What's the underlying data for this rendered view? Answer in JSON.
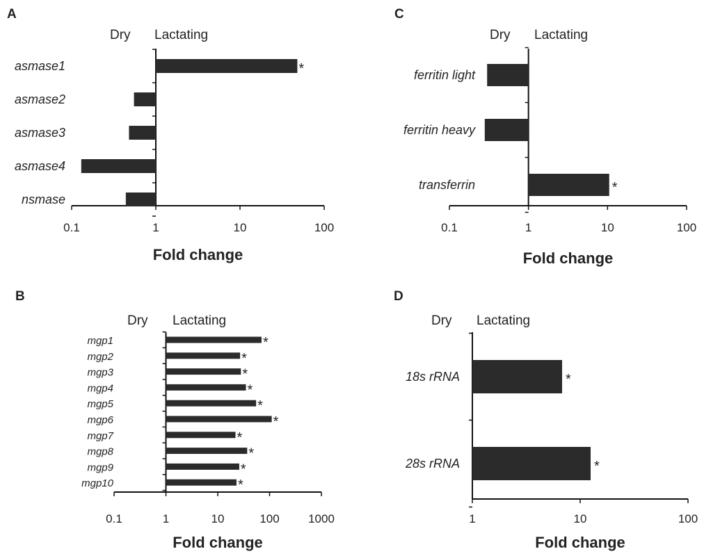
{
  "colors": {
    "bar": "#2b2b2b",
    "axis": "#111111",
    "text": "#222222",
    "background": "#ffffff"
  },
  "chart_data": [
    {
      "panel": "A",
      "type": "bar",
      "orientation": "horizontal",
      "xscale": "log",
      "xlim": [
        0.1,
        100
      ],
      "xticks": [
        "0.1",
        "1",
        "10",
        "100"
      ],
      "baseline": 1,
      "xlabel": "Fold change",
      "side_labels": [
        "Dry",
        "Lactating"
      ],
      "categories": [
        "asmase1",
        "asmase2",
        "asmase3",
        "asmase4",
        "nsmase"
      ],
      "values": [
        48,
        0.55,
        0.48,
        0.13,
        0.44
      ],
      "significant": [
        true,
        false,
        false,
        false,
        false
      ]
    },
    {
      "panel": "B",
      "type": "bar",
      "orientation": "horizontal",
      "xscale": "log",
      "xlim": [
        0.1,
        1000
      ],
      "xticks": [
        "0.1",
        "1",
        "10",
        "100",
        "1000"
      ],
      "baseline": 1,
      "xlabel": "Fold change",
      "side_labels": [
        "Dry",
        "Lactating"
      ],
      "categories": [
        "mgp1",
        "mgp2",
        "mgp3",
        "mgp4",
        "mgp5",
        "mgp6",
        "mgp7",
        "mgp8",
        "mgp9",
        "mgp10"
      ],
      "values": [
        70,
        27,
        28,
        35,
        55,
        110,
        22,
        37,
        26,
        23
      ],
      "significant": [
        true,
        true,
        true,
        true,
        true,
        true,
        true,
        true,
        true,
        true
      ]
    },
    {
      "panel": "C",
      "type": "bar",
      "orientation": "horizontal",
      "xscale": "log",
      "xlim": [
        0.1,
        100
      ],
      "xticks": [
        "0.1",
        "1",
        "10",
        "100"
      ],
      "baseline": 1,
      "xlabel": "Fold change",
      "side_labels": [
        "Dry",
        "Lactating"
      ],
      "categories": [
        "ferritin light",
        "ferritin heavy",
        "transferrin"
      ],
      "values": [
        0.3,
        0.28,
        10.5
      ],
      "significant": [
        false,
        false,
        true
      ]
    },
    {
      "panel": "D",
      "type": "bar",
      "orientation": "horizontal",
      "xscale": "log",
      "xlim": [
        1,
        100
      ],
      "xticks": [
        "1",
        "10",
        "100"
      ],
      "baseline": 1,
      "xlabel": "Fold change",
      "side_labels": [
        "Dry",
        "Lactating"
      ],
      "categories": [
        "18s rRNA",
        "28s rRNA"
      ],
      "values": [
        6.8,
        12.5
      ],
      "significant": [
        true,
        true
      ]
    }
  ]
}
